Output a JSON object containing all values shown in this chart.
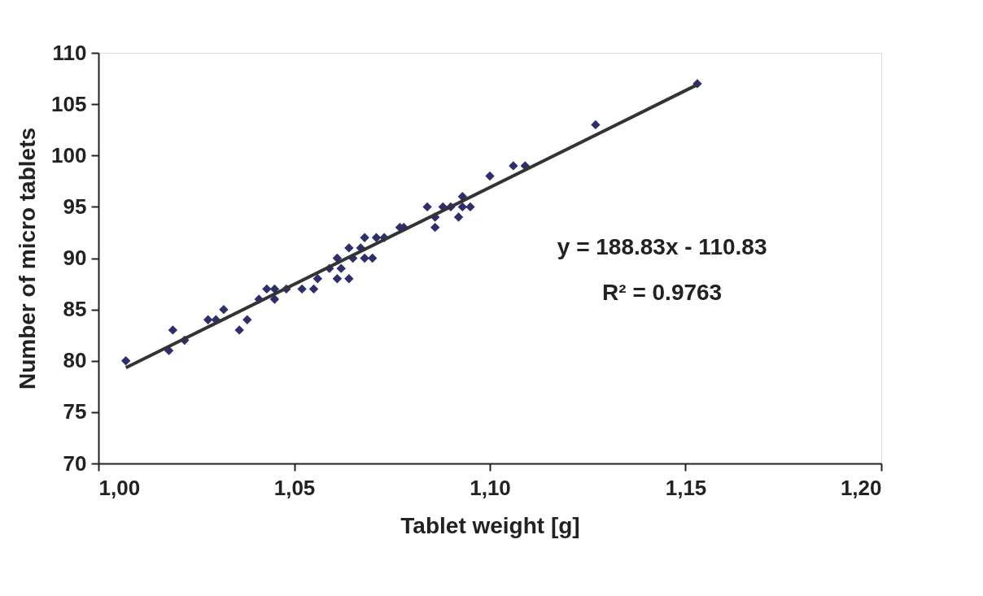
{
  "chart_data": {
    "type": "scatter",
    "xlabel": "Tablet weight [g]",
    "ylabel": "Number of micro tablets",
    "xlim": [
      1.0,
      1.2
    ],
    "ylim": [
      70,
      110
    ],
    "xticks": [
      {
        "value": 1.0,
        "label": "1,00"
      },
      {
        "value": 1.05,
        "label": "1,05"
      },
      {
        "value": 1.1,
        "label": "1,10"
      },
      {
        "value": 1.15,
        "label": "1,15"
      },
      {
        "value": 1.2,
        "label": "1,20"
      }
    ],
    "yticks": [
      70,
      75,
      80,
      85,
      90,
      95,
      100,
      105,
      110
    ],
    "grid": false,
    "series": [
      {
        "color": "#2e2e6a",
        "marker": "diamond",
        "x": [
          1.007,
          1.018,
          1.019,
          1.022,
          1.028,
          1.03,
          1.032,
          1.036,
          1.038,
          1.041,
          1.043,
          1.045,
          1.045,
          1.048,
          1.052,
          1.055,
          1.056,
          1.059,
          1.061,
          1.061,
          1.062,
          1.064,
          1.064,
          1.065,
          1.067,
          1.068,
          1.068,
          1.07,
          1.071,
          1.073,
          1.077,
          1.078,
          1.084,
          1.086,
          1.086,
          1.088,
          1.09,
          1.092,
          1.093,
          1.093,
          1.095,
          1.1,
          1.106,
          1.109,
          1.127,
          1.153
        ],
        "values": [
          80,
          81,
          83,
          82,
          84,
          84,
          85,
          83,
          84,
          86,
          87,
          87,
          86,
          87,
          87,
          87,
          88,
          89,
          88,
          90,
          89,
          91,
          88,
          90,
          91,
          92,
          90,
          90,
          92,
          92,
          93,
          93,
          95,
          94,
          93,
          95,
          95,
          94,
          96,
          95,
          95,
          98,
          99,
          99,
          103,
          107
        ]
      },
      {
        "type": "line",
        "color": "#333333",
        "line_style": "solid",
        "x": [
          1.007,
          1.153
        ],
        "values": [
          79.33,
          106.9
        ]
      }
    ],
    "annotations": [
      "y = 188.83x - 110.83",
      "R² = 0.9763"
    ]
  }
}
